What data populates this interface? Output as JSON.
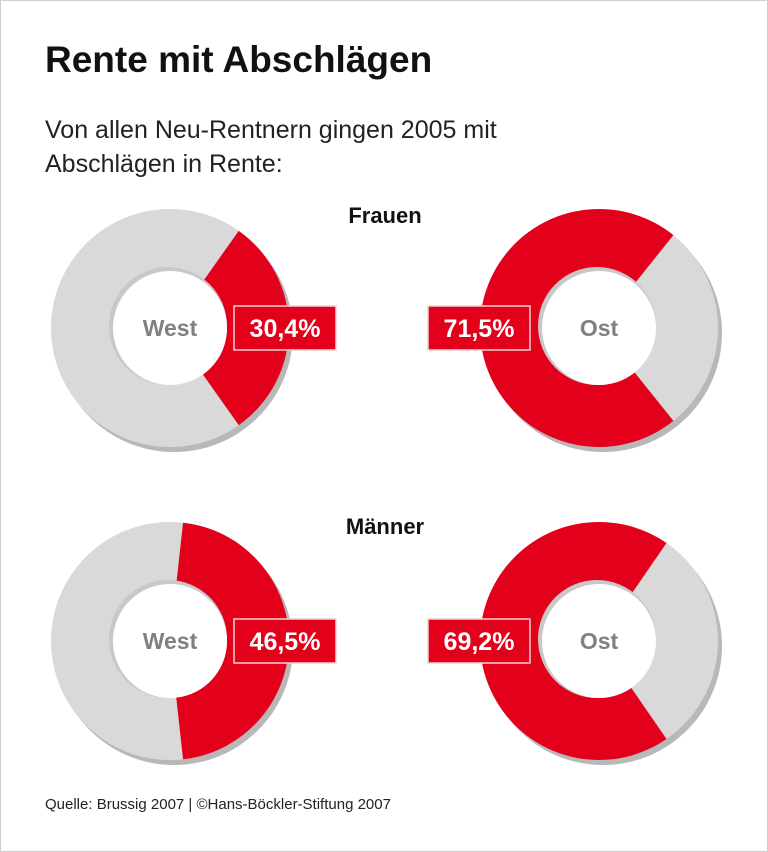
{
  "title": "Rente mit Abschlägen",
  "subtitle": "Von allen Neu-Rentnern gingen 2005 mit Abschlägen in Rente:",
  "source": "Quelle: Brussig 2007 | ©Hans-Böckler-Stiftung 2007",
  "colors": {
    "highlight": "#e2001a",
    "rest": "#d9d9d9",
    "region_label": "#808080"
  },
  "chart_data": [
    {
      "type": "pie",
      "variant": "donut",
      "group": "Frauen",
      "region": "West",
      "value": 30.4,
      "label": "30,4%"
    },
    {
      "type": "pie",
      "variant": "donut",
      "group": "Frauen",
      "region": "Ost",
      "value": 71.5,
      "label": "71,5%"
    },
    {
      "type": "pie",
      "variant": "donut",
      "group": "Männer",
      "region": "West",
      "value": 46.5,
      "label": "46,5%"
    },
    {
      "type": "pie",
      "variant": "donut",
      "group": "Männer",
      "region": "Ost",
      "value": 69.2,
      "label": "69,2%"
    }
  ],
  "groups": [
    "Frauen",
    "Männer"
  ]
}
